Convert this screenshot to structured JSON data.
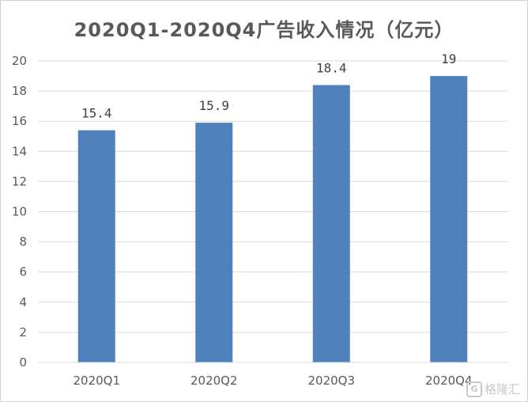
{
  "chart_data": {
    "type": "bar",
    "title": "2020Q1-2020Q4广告收入情况（亿元）",
    "categories": [
      "2020Q1",
      "2020Q2",
      "2020Q3",
      "2020Q4"
    ],
    "values": [
      15.4,
      15.9,
      18.4,
      19
    ],
    "data_labels": [
      "15.4",
      "15.9",
      "18.4",
      "19"
    ],
    "xlabel": "",
    "ylabel": "",
    "ylim": [
      0,
      20
    ],
    "yticks": [
      0,
      2,
      4,
      6,
      8,
      10,
      12,
      14,
      16,
      18,
      20
    ],
    "grid": true,
    "legend": "none",
    "bar_color": "#4f81bd"
  },
  "watermark": {
    "logo": "G",
    "text": "格隆汇"
  }
}
